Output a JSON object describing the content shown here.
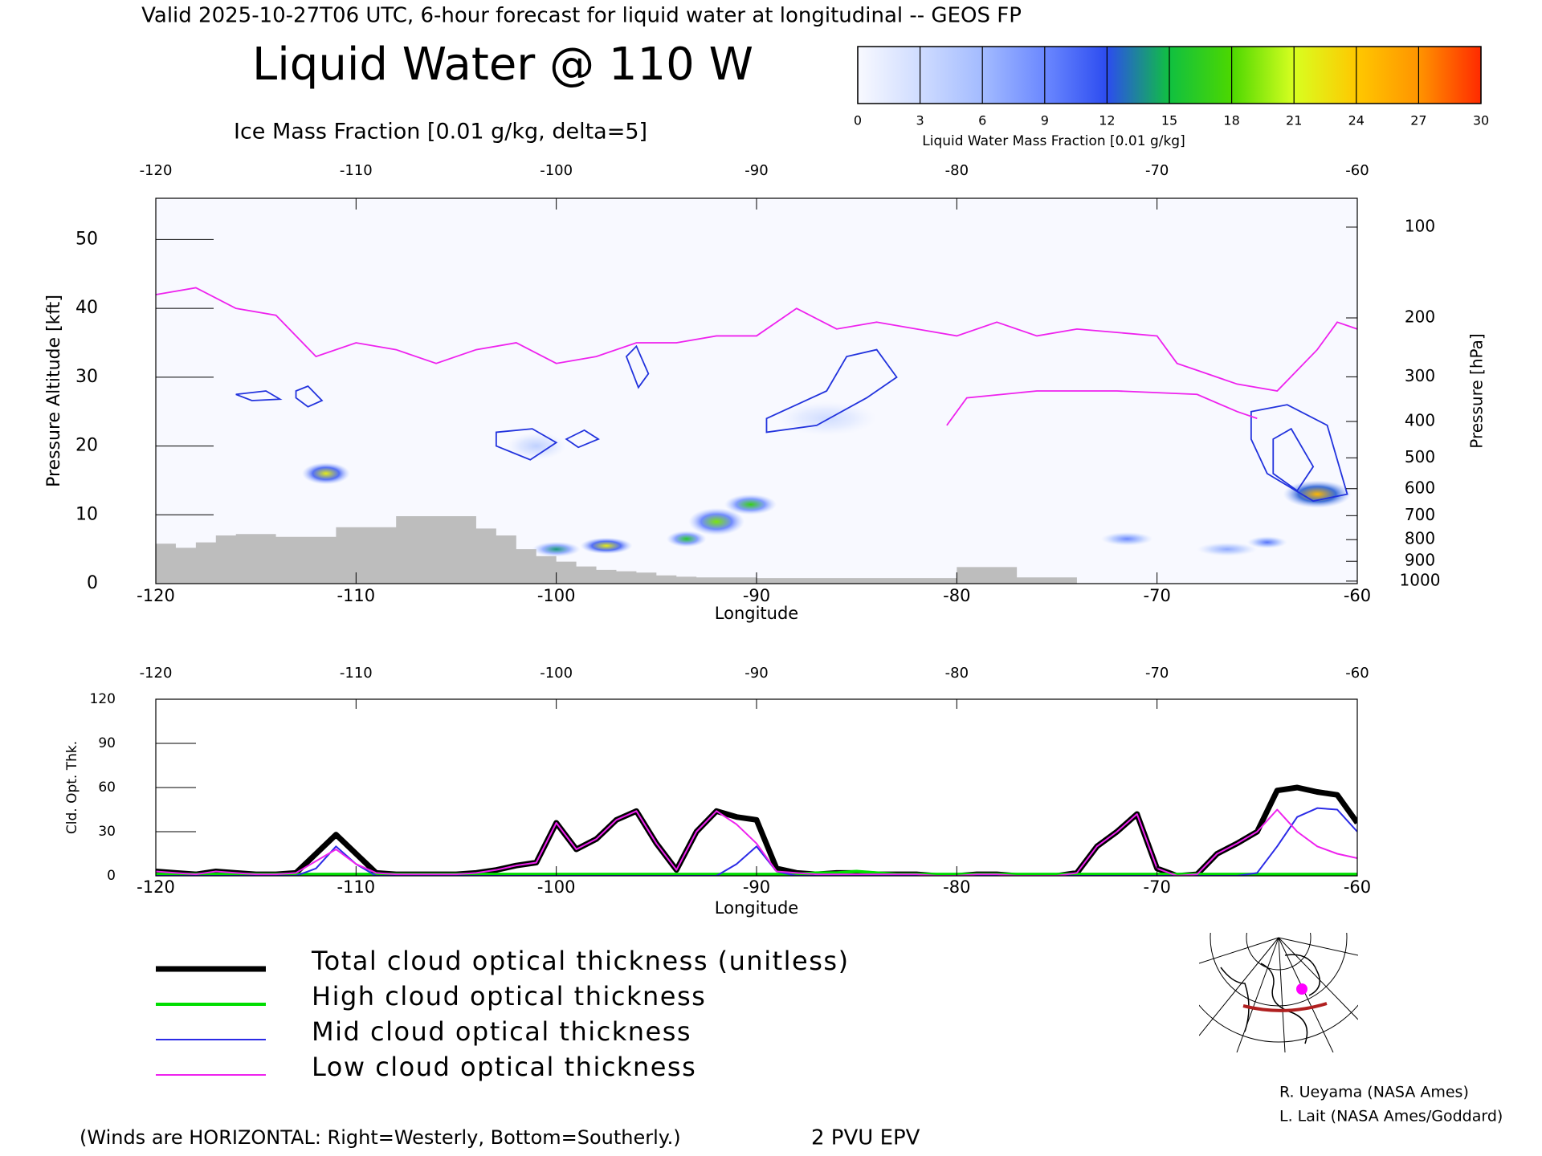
{
  "header": "Valid 2025-10-27T06 UTC, 6-hour forecast for liquid water at longitudinal -- GEOS FP",
  "credits": [
    "R. Ueyama (NASA Ames)",
    "L. Lait (NASA Ames/Goddard)"
  ],
  "chart_data": [
    {
      "type": "cross-section",
      "title": "Liquid Water @ 110 W",
      "subtitle": "Ice Mass Fraction [0.01 g/kg, delta=5]",
      "subtitle_color": "#3a3aff",
      "xlabel": "Longitude",
      "ylabel": "Pressure Altitude [kft]",
      "y2label": "Pressure [hPa]",
      "xlim": [
        -120,
        -60
      ],
      "xticks": [
        -120,
        -110,
        -100,
        -90,
        -80,
        -70,
        -60
      ],
      "ylim": [
        0,
        56
      ],
      "yticks": [
        0,
        10,
        20,
        30,
        40,
        50
      ],
      "y2scale": "pressure-altitude",
      "y2ticks": [
        100,
        200,
        300,
        400,
        500,
        600,
        700,
        800,
        900,
        1000
      ],
      "colorbar": {
        "label": "Liquid Water Mass Fraction [0.01 g/kg]",
        "lim": [
          0,
          30
        ],
        "ticks": [
          0,
          3,
          6,
          9,
          12,
          15,
          18,
          21,
          24,
          27,
          30
        ],
        "colors": [
          "#f8f9ff",
          "#cfdcff",
          "#a3bbff",
          "#6b88ff",
          "#2c4cf0",
          "#10c040",
          "#4cd800",
          "#d8ff20",
          "#ffc800",
          "#ff9400",
          "#ff2a00"
        ]
      },
      "liquid_water": [
        {
          "lon": -111.5,
          "alt": 16,
          "value": 22,
          "width": 2.4,
          "height": 3.2
        },
        {
          "lon": -100,
          "alt": 5,
          "value": 14,
          "width": 2.4,
          "height": 2.2
        },
        {
          "lon": -97.5,
          "alt": 5.5,
          "value": 22,
          "width": 2.6,
          "height": 2.4
        },
        {
          "lon": -93.5,
          "alt": 6.5,
          "value": 16,
          "width": 2.0,
          "height": 2.4
        },
        {
          "lon": -92,
          "alt": 9,
          "value": 19,
          "width": 2.8,
          "height": 4.0
        },
        {
          "lon": -90.3,
          "alt": 11.5,
          "value": 17,
          "width": 2.6,
          "height": 3.0
        },
        {
          "lon": -71.5,
          "alt": 6.5,
          "value": 9,
          "width": 2.6,
          "height": 2.0
        },
        {
          "lon": -66.5,
          "alt": 5,
          "value": 7,
          "width": 3.0,
          "height": 2.0
        },
        {
          "lon": -64.5,
          "alt": 6,
          "value": 10,
          "width": 2.0,
          "height": 1.8
        },
        {
          "lon": -62,
          "alt": 13,
          "value": 25,
          "width": 3.4,
          "height": 4.0
        },
        {
          "lon": -101,
          "alt": 20,
          "value": 4,
          "width": 3.0,
          "height": 4.0
        },
        {
          "lon": -86.5,
          "alt": 24,
          "value": 3,
          "width": 5.0,
          "height": 5.0
        }
      ],
      "ice_contours": [
        {
          "lon": [
            -89.5,
            -88,
            -86.5,
            -85.5,
            -84,
            -83,
            -84.5,
            -87,
            -89.5
          ],
          "alt": [
            24,
            26,
            28,
            33,
            34,
            30,
            27,
            23,
            22
          ]
        },
        {
          "lon": [
            -103,
            -101.2,
            -100,
            -101.3,
            -103
          ],
          "alt": [
            22,
            22.5,
            20.5,
            18,
            20
          ]
        },
        {
          "lon": [
            -99.5,
            -98.6,
            -97.9,
            -98.9,
            -99.5
          ],
          "alt": [
            21,
            22.3,
            21,
            19.8,
            21
          ]
        },
        {
          "lon": [
            -113,
            -112.4,
            -111.7,
            -112.4,
            -113
          ],
          "alt": [
            28,
            28.7,
            26.6,
            25.7,
            27
          ]
        },
        {
          "lon": [
            -116,
            -114.5,
            -113.8,
            -115.2,
            -116
          ],
          "alt": [
            27.5,
            28,
            26.8,
            26.6,
            27.5
          ]
        },
        {
          "lon": [
            -96.5,
            -96,
            -95.4,
            -95.9,
            -96.5
          ],
          "alt": [
            33,
            34.5,
            30.5,
            28.5,
            33
          ]
        },
        {
          "lon": [
            -65.3,
            -63.5,
            -61.5,
            -60.5,
            -62.2,
            -64.5,
            -65.3
          ],
          "alt": [
            25,
            26,
            23,
            13,
            12,
            16,
            21
          ]
        },
        {
          "lon": [
            -64.2,
            -63.3,
            -62.2,
            -63,
            -64.2
          ],
          "alt": [
            21,
            22.5,
            17,
            13.5,
            16
          ]
        }
      ],
      "terrain": {
        "color": "#bdbdbd",
        "lon": [
          -120,
          -119,
          -118,
          -117,
          -116,
          -115,
          -114,
          -113,
          -112,
          -111,
          -110,
          -109,
          -108,
          -107,
          -106,
          -105,
          -104,
          -103,
          -102,
          -101,
          -100,
          -99,
          -98,
          -97,
          -96,
          -95,
          -94,
          -93,
          -90,
          -85,
          -81,
          -80,
          -79,
          -78,
          -77,
          -76,
          -75,
          -74
        ],
        "alt": [
          5.8,
          5.2,
          6.0,
          7.0,
          7.2,
          7.2,
          6.8,
          6.8,
          6.8,
          8.2,
          8.2,
          8.2,
          9.8,
          9.8,
          9.8,
          9.8,
          8.0,
          7.0,
          5.0,
          4.0,
          3.2,
          2.5,
          2.0,
          1.8,
          1.6,
          1.2,
          1.0,
          0.9,
          0.8,
          0.8,
          0.8,
          2.4,
          2.4,
          2.4,
          0.9,
          0.9,
          0.9,
          0
        ]
      },
      "epv": {
        "name": "2 PVU EPV",
        "color": "#ee22ee",
        "lon": [
          -120,
          -118,
          -116,
          -114,
          -112,
          -110,
          -108,
          -106,
          -104,
          -102,
          -100,
          -98,
          -96,
          -94,
          -92,
          -90,
          -88,
          -86,
          -84,
          -82,
          -80,
          -78,
          -76,
          -74,
          -72,
          -70,
          -69,
          -68,
          -66,
          -64,
          -62,
          -61,
          -60,
          null,
          -80.5,
          -79.5,
          -76,
          -72,
          -68,
          -66,
          -65
        ],
        "alt": [
          42,
          43,
          40,
          39,
          33,
          35,
          34,
          32,
          34,
          35,
          32,
          33,
          35,
          35,
          36,
          36,
          40,
          37,
          38,
          37,
          36,
          38,
          36,
          37,
          36.5,
          36,
          32,
          31,
          29,
          28,
          34,
          38,
          37,
          null,
          23,
          27,
          28,
          28,
          27.5,
          25,
          24
        ]
      },
      "wind_note": "(Winds are HORIZONTAL: Right=Westerly, Bottom=Southerly.)",
      "wind_note_color": "#e6a030"
    },
    {
      "type": "line",
      "xlabel": "Longitude",
      "ylabel": "Cld. Opt. Thk.",
      "xlim": [
        -120,
        -60
      ],
      "xticks": [
        -120,
        -110,
        -100,
        -90,
        -80,
        -70,
        -60
      ],
      "ylim": [
        0,
        120
      ],
      "yticks": [
        0,
        30,
        60,
        90,
        120
      ],
      "x": [
        -120,
        -119,
        -118,
        -117,
        -116,
        -115,
        -114,
        -113,
        -112,
        -111,
        -110,
        -109,
        -108,
        -107,
        -106,
        -105,
        -104,
        -103,
        -102,
        -101,
        -100,
        -99,
        -98,
        -97,
        -96,
        -95,
        -94,
        -93,
        -92,
        -91,
        -90,
        -89,
        -88,
        -87,
        -86,
        -85,
        -84,
        -83,
        -82,
        -81,
        -80,
        -79,
        -78,
        -77,
        -76,
        -75,
        -74,
        -73,
        -72,
        -71,
        -70,
        -69,
        -68,
        -67,
        -66,
        -65,
        -64,
        -63,
        -62,
        -61,
        -60
      ],
      "series": [
        {
          "name": "Total cloud optical thickness (unitless)",
          "color": "#000000",
          "line_width": 7,
          "values": [
            3,
            2,
            1,
            3,
            2,
            1,
            1,
            2,
            15,
            28,
            15,
            2,
            1,
            1,
            1,
            1,
            2,
            4,
            7,
            9,
            36,
            18,
            25,
            38,
            44,
            22,
            4,
            30,
            44,
            40,
            38,
            5,
            2,
            1,
            2,
            2,
            1,
            1,
            1,
            0,
            0,
            1,
            1,
            0,
            0,
            0,
            2,
            20,
            30,
            42,
            5,
            0,
            1,
            15,
            22,
            30,
            58,
            60,
            57,
            55,
            36
          ]
        },
        {
          "name": "High cloud optical thickness",
          "color": "#00dd00",
          "line_width": 4,
          "values": [
            1,
            1,
            1,
            1,
            1,
            1,
            1,
            1,
            1,
            1,
            1,
            1,
            1,
            1,
            1,
            1,
            1,
            1,
            1,
            1,
            1,
            1,
            1,
            1,
            1,
            1,
            1,
            1,
            1,
            1,
            1,
            1,
            1,
            2,
            2,
            3,
            2,
            1,
            1,
            1,
            1,
            1,
            1,
            1,
            1,
            1,
            1,
            1,
            1,
            1,
            1,
            1,
            1,
            1,
            1,
            1,
            1,
            1,
            1,
            1,
            1
          ]
        },
        {
          "name": "Mid cloud optical thickness",
          "color": "#2b2be6",
          "line_width": 2,
          "values": [
            0,
            0,
            0,
            0,
            0,
            0,
            0,
            0,
            5,
            20,
            8,
            0,
            0,
            0,
            0,
            0,
            0,
            0,
            0,
            0,
            0,
            0,
            0,
            0,
            0,
            0,
            0,
            0,
            0,
            8,
            20,
            3,
            0,
            0,
            0,
            0,
            0,
            0,
            0,
            0,
            0,
            0,
            0,
            0,
            0,
            0,
            0,
            0,
            0,
            0,
            0,
            0,
            0,
            0,
            0,
            2,
            20,
            40,
            46,
            45,
            30
          ]
        },
        {
          "name": "Low cloud optical thickness",
          "color": "#ee22ee",
          "line_width": 2,
          "values": [
            3,
            2,
            1,
            3,
            2,
            1,
            1,
            2,
            10,
            18,
            8,
            2,
            1,
            1,
            1,
            1,
            2,
            4,
            7,
            9,
            36,
            18,
            25,
            38,
            44,
            22,
            4,
            30,
            44,
            35,
            22,
            3,
            2,
            1,
            1,
            1,
            1,
            1,
            1,
            0,
            0,
            1,
            1,
            0,
            0,
            0,
            2,
            20,
            30,
            42,
            5,
            0,
            1,
            15,
            22,
            30,
            45,
            30,
            20,
            15,
            12
          ]
        }
      ]
    }
  ]
}
